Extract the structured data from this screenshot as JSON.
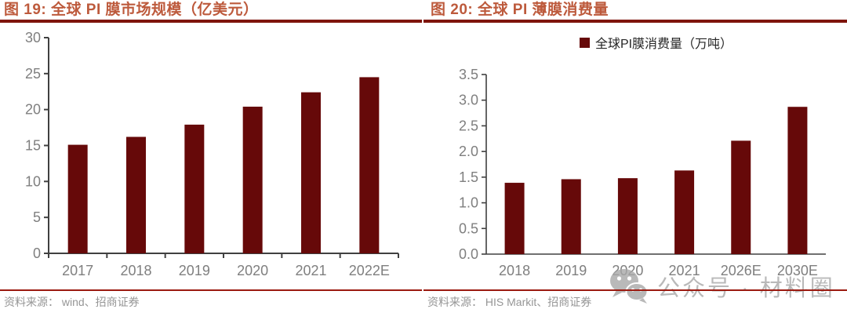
{
  "left_panel": {
    "title": "图 19:  全球 PI 膜市场规模（亿美元）",
    "source": "资料来源：  wind、招商证券"
  },
  "right_panel": {
    "title": "图 20:  全球 PI 薄膜消费量",
    "legend_label": "全球PI膜消费量（万吨）",
    "source": "资料来源：  HIS Markit、招商证券"
  },
  "watermark": {
    "icon": "wechat-icon",
    "text": "公众号 · 材料圈"
  },
  "colors": {
    "bar": "#660909",
    "title_text": "#bd5a3c",
    "header_rule": "#7e140b",
    "footer_rule": "#9b1a10",
    "axis": "#404040",
    "tick_label": "#7f7f7f",
    "legend_text": "#262626",
    "source_text": "#969696",
    "watermark": "#a8a8a8"
  },
  "chart_data": [
    {
      "type": "bar",
      "title": "图 19: 全球 PI 膜市场规模（亿美元）",
      "categories": [
        "2017",
        "2018",
        "2019",
        "2020",
        "2021",
        "2022E"
      ],
      "values": [
        15.1,
        16.2,
        17.9,
        20.4,
        22.4,
        24.5
      ],
      "xlabel": "",
      "ylabel": "",
      "ylim": [
        0,
        30
      ],
      "ytick_step": 5,
      "y_decimals": 0,
      "grid": false,
      "legend_position": "none",
      "bar_color": "#660909"
    },
    {
      "type": "bar",
      "title": "图 20: 全球 PI 薄膜消费量",
      "legend": "全球PI膜消费量（万吨）",
      "categories": [
        "2018",
        "2019",
        "2020",
        "2021",
        "2026E",
        "2030E"
      ],
      "values": [
        1.39,
        1.46,
        1.48,
        1.63,
        2.21,
        2.87
      ],
      "xlabel": "",
      "ylabel": "",
      "ylim": [
        0,
        3.5
      ],
      "ytick_step": 0.5,
      "y_decimals": 1,
      "grid": false,
      "legend_position": "top",
      "bar_color": "#660909"
    }
  ]
}
